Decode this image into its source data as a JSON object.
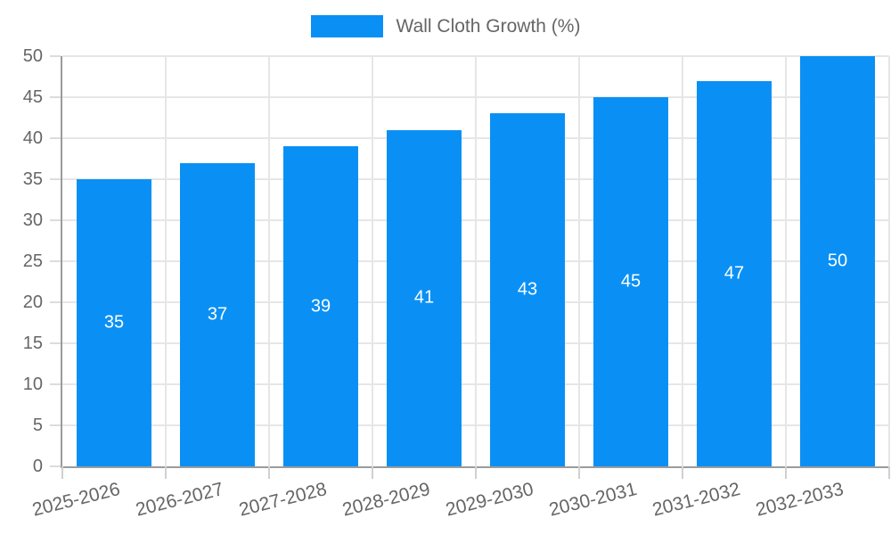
{
  "chart_data": {
    "type": "bar",
    "title": "",
    "legend": "Wall Cloth Growth (%)",
    "legend_position": "top-center",
    "categories": [
      "2025-2026",
      "2026-2027",
      "2027-2028",
      "2028-2029",
      "2029-2030",
      "2030-2031",
      "2031-2032",
      "2032-2033"
    ],
    "values": [
      35,
      37,
      39,
      41,
      43,
      45,
      47,
      50
    ],
    "value_label_position": "inside-center",
    "xlabel": "",
    "ylabel": "",
    "ylim": [
      0,
      50
    ],
    "y_ticks": [
      0,
      5,
      10,
      15,
      20,
      25,
      30,
      35,
      40,
      45,
      50
    ],
    "grid": true,
    "colors": {
      "bar": "#0a90f5",
      "bar_value_text": "#ffffff",
      "axis_line": "#9b9b9b",
      "gridline": "#e6e6e6",
      "tick": "#d0d0d0",
      "label_text": "#666666"
    }
  }
}
